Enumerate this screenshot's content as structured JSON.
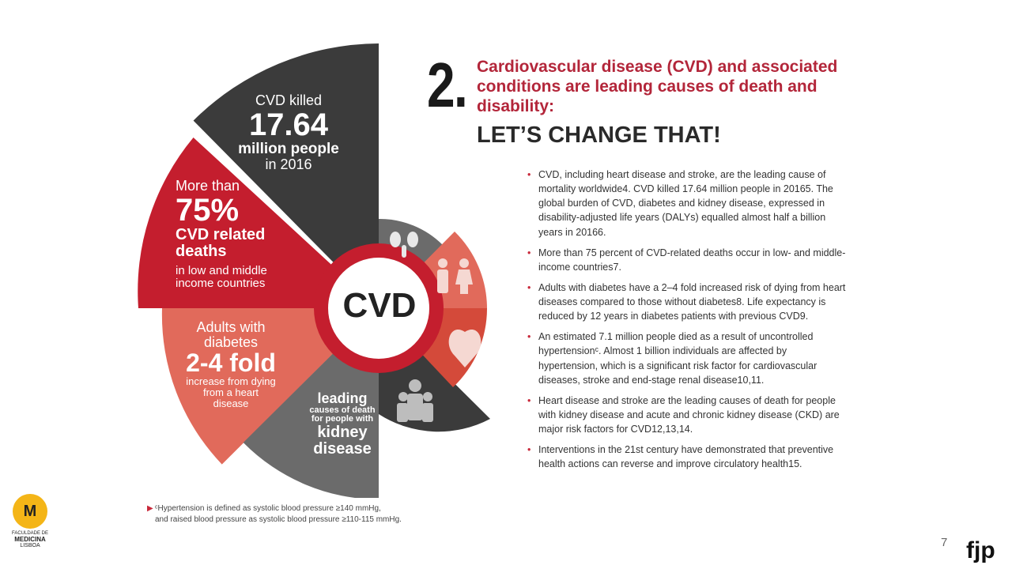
{
  "slide": {
    "number": "2.",
    "heading": "Cardiovascular disease (CVD) and associated conditions are leading causes of death and disability:",
    "subheading": "LET’S CHANGE THAT!",
    "page_number": "7",
    "brand": "fjp"
  },
  "infographic": {
    "center_label": "CVD",
    "segments": {
      "killed": {
        "line1": "CVD killed",
        "value": "17.64",
        "line3": "million people",
        "line4": "in 2016"
      },
      "low_income": {
        "line1": "More than",
        "value": "75%",
        "line3": "CVD related",
        "line4": "deaths",
        "line5": "in low and middle",
        "line6": "income countries"
      },
      "diabetes": {
        "line1": "Adults with",
        "line2": "diabetes",
        "value": "2-4 fold",
        "line4": "increase from dying",
        "line5": "from a heart",
        "line6": "disease"
      },
      "kidney": {
        "line1": "leading",
        "line2": "causes of death",
        "line3": "for people with",
        "line4": "kidney",
        "line5": "disease"
      }
    },
    "colors": {
      "dark": "#3b3b3b",
      "red": "#c41e2e",
      "salmon": "#e16a5b",
      "grey": "#6b6b6b",
      "white": "#ffffff"
    },
    "icons": [
      "kidneys-icon",
      "people-icon",
      "heart-icon",
      "family-icon"
    ]
  },
  "bullets": [
    "CVD, including heart disease and stroke, are the leading cause of mortality worldwide4. CVD killed 17.64 million people in 20165. The global burden of CVD, diabetes and kidney disease, expressed in disability-adjusted life years (DALYs) equalled almost half a billion years in 20166.",
    "More than 75 percent of CVD-related deaths occur in low- and middle-income countries7.",
    "Adults with diabetes have a 2–4 fold increased risk of dying from heart diseases compared to those without diabetes8. Life expectancy is reduced by 12 years in diabetes patients with previous CVD9.",
    "An estimated 7.1 million people died as a result of uncontrolled hypertensionᶜ. Almost 1 billion individuals are affected by hypertension, which is a significant risk factor for cardiovascular diseases, stroke and end-stage renal disease10,11.",
    "Heart disease and stroke are the leading causes of death for people with kidney disease and acute and chronic kidney disease (CKD) are major risk factors for CVD12,13,14.",
    "Interventions in the 21st century have demonstrated that preventive health actions can reverse and improve circulatory health15."
  ],
  "footnote": {
    "mark": "▶",
    "line1": "ᶜHypertension is defined as systolic blood pressure ≥140 mmHg,",
    "line2": "and raised blood pressure as systolic blood pressure ≥110-115 mmHg."
  },
  "logo": {
    "monogram": "M",
    "line1": "FACULDADE DE",
    "line2": "MEDICINA",
    "line3": "LISBOA"
  }
}
